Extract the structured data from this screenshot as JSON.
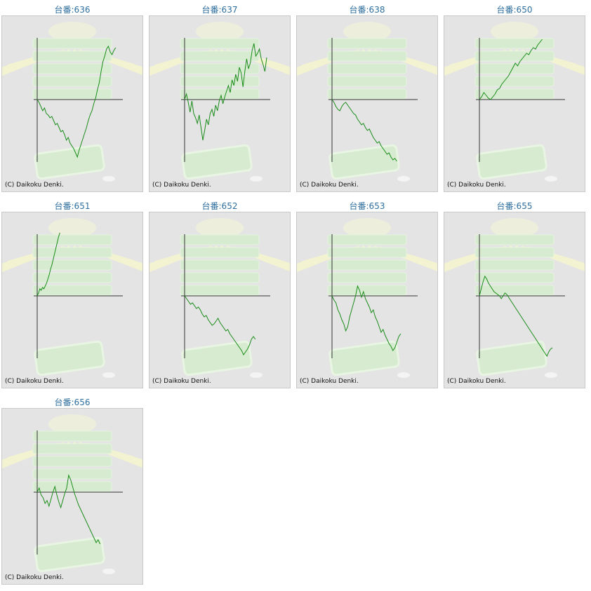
{
  "charts": [
    {
      "title": "台番:636",
      "copyright": "(C) Daikoku Denki."
    },
    {
      "title": "台番:637",
      "copyright": "(C) Daikoku Denki."
    },
    {
      "title": "台番:638",
      "copyright": "(C) Daikoku Denki."
    },
    {
      "title": "台番:650",
      "copyright": "(C) Daikoku Denki."
    },
    {
      "title": "台番:651",
      "copyright": "(C) Daikoku Denki."
    },
    {
      "title": "台番:652",
      "copyright": "(C) Daikoku Denki."
    },
    {
      "title": "台番:653",
      "copyright": "(C) Daikoku Denki."
    },
    {
      "title": "台番:655",
      "copyright": "(C) Daikoku Denki."
    },
    {
      "title": "台番:656",
      "copyright": "(C) Daikoku Denki."
    }
  ],
  "colors": {
    "line": "#1a8c1a",
    "title": "#2f6fa0",
    "panel_bg": "#e4e4e4",
    "axis": "#333333"
  },
  "chart_data": [
    {
      "type": "line",
      "title": "台番:636",
      "series": [
        {
          "values": [
            0,
            -4,
            -10,
            -16,
            -12,
            -20,
            -22,
            -26,
            -24,
            -30,
            -36,
            -34,
            -40,
            -46,
            -44,
            -50,
            -58,
            -54,
            -62,
            -66,
            -70,
            -76,
            -82,
            -72,
            -64,
            -56,
            -48,
            -40,
            -30,
            -22,
            -16,
            -6,
            2,
            14,
            24,
            40,
            54,
            62,
            72,
            76,
            68,
            64,
            70,
            74
          ]
        }
      ]
    },
    {
      "type": "line",
      "title": "台番:637",
      "series": [
        {
          "values": [
            0,
            8,
            -4,
            -18,
            -2,
            -20,
            -26,
            -34,
            -22,
            -40,
            -58,
            -44,
            -28,
            -36,
            -20,
            -14,
            -24,
            -8,
            -16,
            -2,
            6,
            -6,
            4,
            12,
            20,
            10,
            28,
            20,
            36,
            26,
            46,
            38,
            18,
            40,
            58,
            44,
            52,
            70,
            80,
            62,
            66,
            72,
            58,
            50,
            40,
            60
          ]
        }
      ]
    },
    {
      "type": "line",
      "title": "台番:638",
      "series": [
        {
          "values": [
            0,
            -4,
            -10,
            -14,
            -16,
            -10,
            -6,
            -4,
            -8,
            -12,
            -16,
            -20,
            -22,
            -28,
            -32,
            -36,
            -34,
            -40,
            -44,
            -42,
            -48,
            -54,
            -58,
            -62,
            -60,
            -66,
            -70,
            -74,
            -78,
            -76,
            -82,
            -86,
            -84,
            -88
          ]
        }
      ]
    },
    {
      "type": "line",
      "title": "台番:650",
      "series": [
        {
          "values": [
            0,
            4,
            10,
            6,
            2,
            0,
            4,
            8,
            14,
            16,
            22,
            26,
            30,
            34,
            40,
            46,
            52,
            48,
            54,
            58,
            62,
            66,
            64,
            70,
            74,
            72,
            78,
            82,
            86
          ]
        }
      ]
    },
    {
      "type": "line",
      "title": "台番:651",
      "series": [
        {
          "values": [
            0,
            4,
            10,
            8,
            12,
            10,
            14,
            18,
            24,
            30,
            38,
            44,
            52,
            60,
            68,
            76,
            84,
            90
          ]
        }
      ]
    },
    {
      "type": "line",
      "title": "台番:652",
      "series": [
        {
          "values": [
            0,
            -4,
            -8,
            -12,
            -10,
            -14,
            -18,
            -16,
            -20,
            -26,
            -30,
            -28,
            -34,
            -38,
            -42,
            -40,
            -36,
            -32,
            -38,
            -42,
            -46,
            -50,
            -48,
            -54,
            -58,
            -62,
            -66,
            -70,
            -74,
            -78,
            -84,
            -80,
            -76,
            -70,
            -62,
            -58,
            -62
          ]
        }
      ]
    },
    {
      "type": "line",
      "title": "台番:653",
      "series": [
        {
          "values": [
            0,
            -6,
            -10,
            -20,
            -26,
            -34,
            -40,
            -50,
            -44,
            -30,
            -20,
            -10,
            0,
            14,
            8,
            -2,
            6,
            -4,
            -10,
            -16,
            -24,
            -20,
            -30,
            -36,
            -44,
            -52,
            -48,
            -56,
            -62,
            -68,
            -72,
            -78,
            -74,
            -66,
            -58,
            -54
          ]
        }
      ]
    },
    {
      "type": "line",
      "title": "台番:655",
      "series": [
        {
          "values": [
            0,
            10,
            20,
            28,
            24,
            18,
            14,
            10,
            6,
            4,
            2,
            0,
            -4,
            0,
            4,
            2,
            -2,
            -6,
            -10,
            -14,
            -18,
            -22,
            -26,
            -30,
            -34,
            -38,
            -42,
            -46,
            -50,
            -54,
            -58,
            -62,
            -66,
            -70,
            -74,
            -78,
            -82,
            -86,
            -80,
            -76,
            -74
          ]
        }
      ]
    },
    {
      "type": "line",
      "title": "台番:656",
      "series": [
        {
          "values": [
            0,
            6,
            -4,
            -8,
            -16,
            -12,
            -20,
            -10,
            0,
            8,
            -4,
            -14,
            -22,
            -12,
            -2,
            6,
            24,
            18,
            8,
            -2,
            -10,
            -18,
            -24,
            -30,
            -36,
            -42,
            -48,
            -54,
            -60,
            -66,
            -72,
            -68,
            -74
          ]
        }
      ]
    }
  ]
}
